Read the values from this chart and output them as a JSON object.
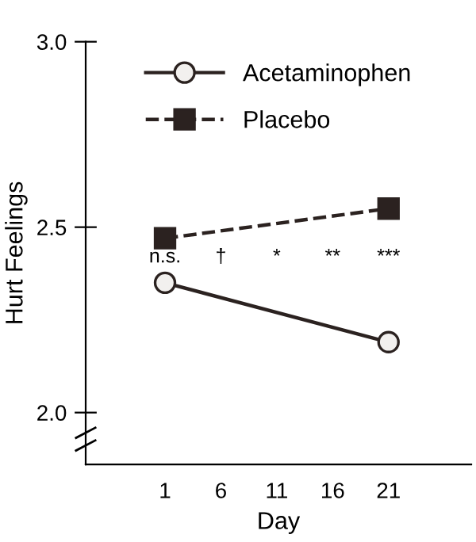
{
  "chart_data": {
    "type": "line",
    "xlabel": "Day",
    "ylabel": "Hurt Feelings",
    "x": [
      1,
      21
    ],
    "series": [
      {
        "name": "Acetaminophen",
        "color": "#2b2220",
        "values": [
          2.35,
          2.19
        ],
        "marker": "circle",
        "line_style": "solid"
      },
      {
        "name": "Placebo",
        "color": "#2b2220",
        "values": [
          2.47,
          2.55
        ],
        "marker": "square",
        "line_style": "dashed"
      }
    ],
    "xlim": [
      -6.1,
      28.4
    ],
    "xticks": [
      1,
      6,
      11,
      16,
      21
    ],
    "ylim": [
      1.86,
      3.0
    ],
    "yticks": [
      {
        "value": 2.0,
        "label": "2.0"
      },
      {
        "value": 2.5,
        "label": "2.5"
      },
      {
        "value": 3.0,
        "label": "3.0"
      }
    ],
    "annotations": [
      "n.s.",
      "†",
      "*",
      "**",
      "***"
    ],
    "legend": "top",
    "grid": false
  }
}
